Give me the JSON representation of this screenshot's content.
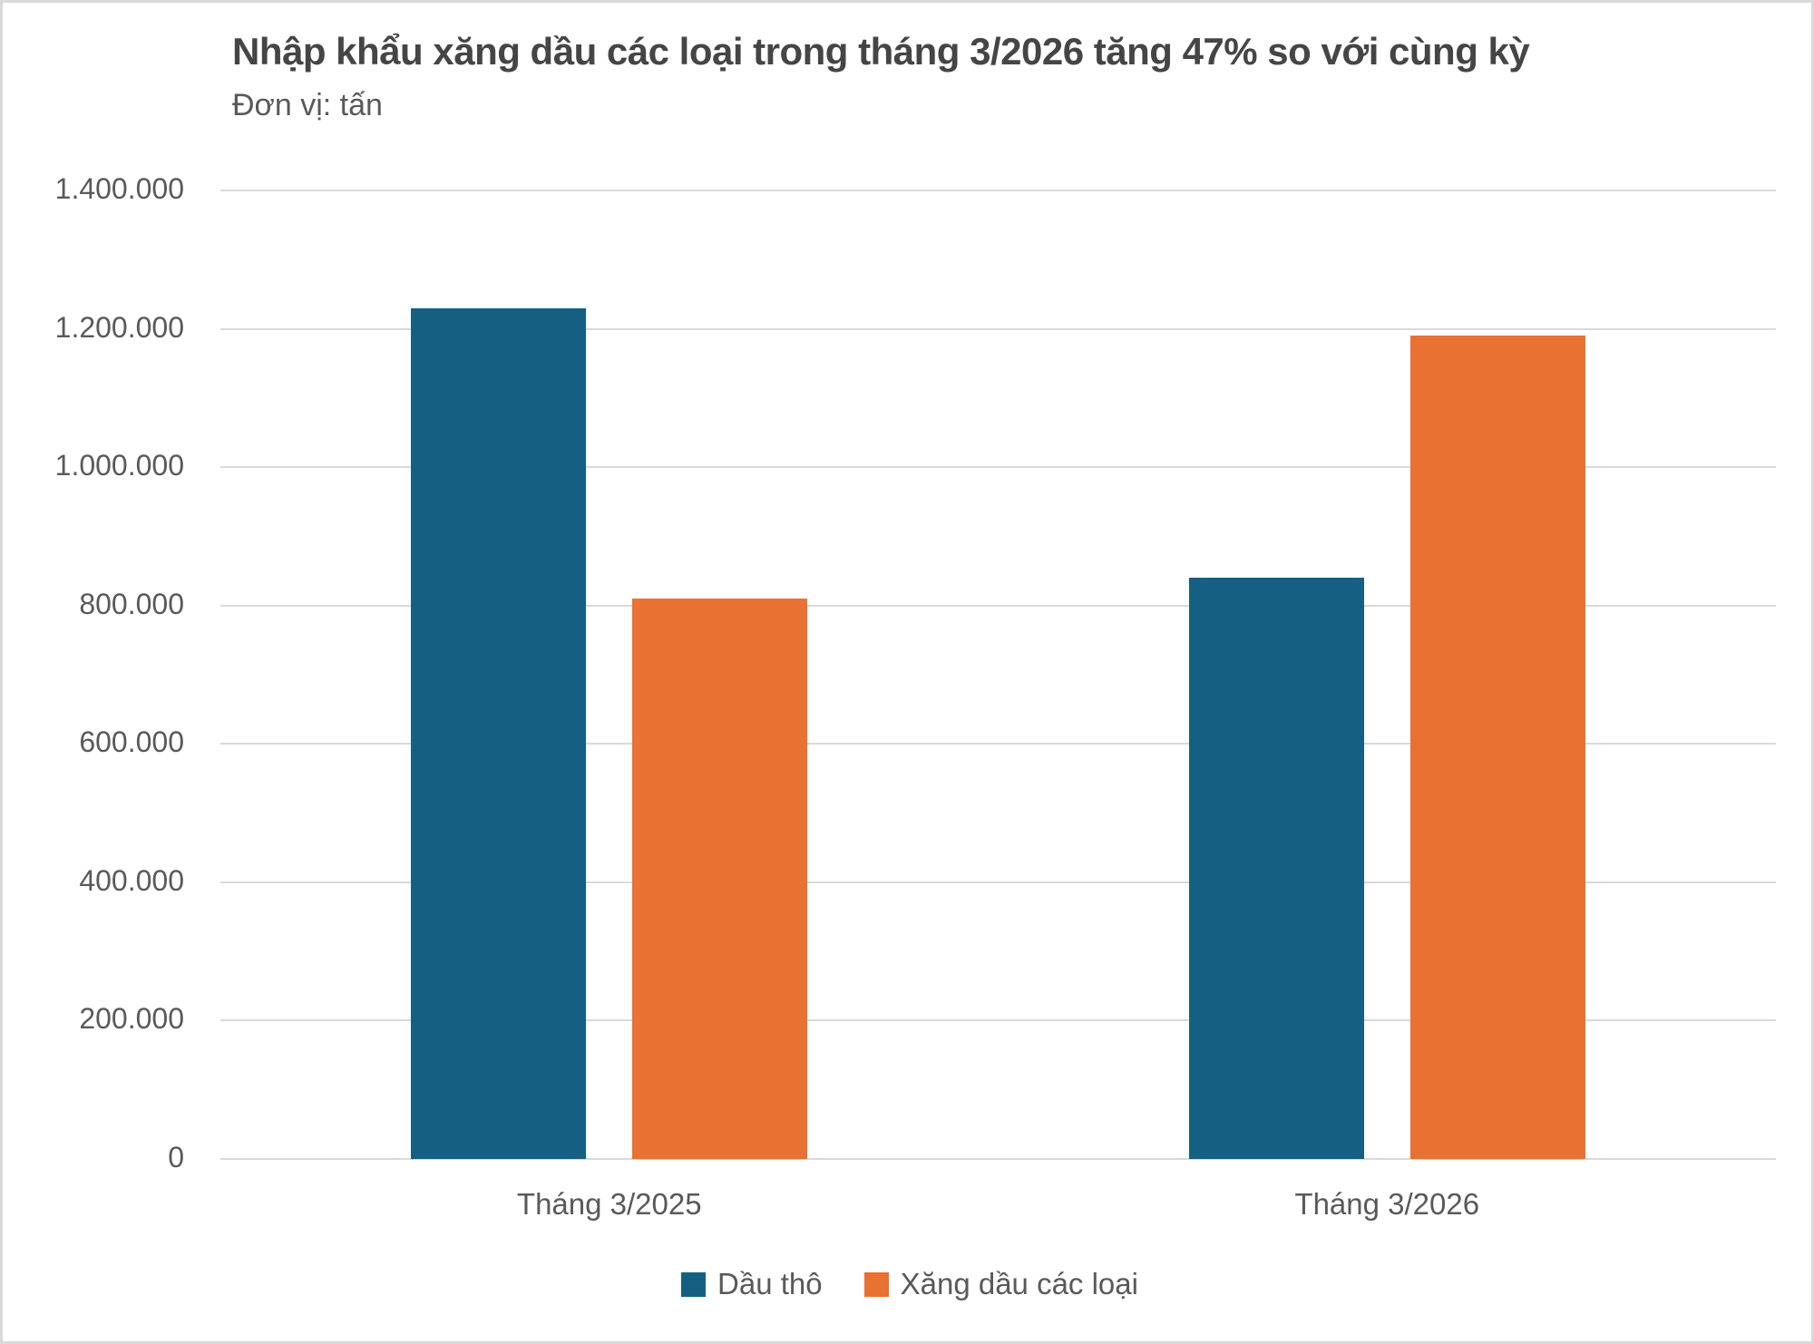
{
  "header": {
    "title": "Nhập khẩu xăng dầu các loại trong tháng 3/2026 tăng 47% so với cùng kỳ",
    "subtitle": "Đơn vị: tấn"
  },
  "colors": {
    "series_dau_tho": "#156082",
    "series_xang_dau": "#E97132",
    "gridline": "#D9D9D9",
    "border": "#D9D9D9",
    "title_text": "#454545",
    "axis_text": "#595959"
  },
  "chart_data": {
    "type": "bar",
    "title": "Nhập khẩu xăng dầu các loại trong tháng 3/2026 tăng 47% so với cùng kỳ",
    "subtitle": "Đơn vị: tấn",
    "categories": [
      "Tháng 3/2025",
      "Tháng 3/2026"
    ],
    "series": [
      {
        "name": "Dầu thô",
        "color": "#156082",
        "values": [
          1230000,
          840000
        ]
      },
      {
        "name": "Xăng dầu các loại",
        "color": "#E97132",
        "values": [
          810000,
          1190000
        ]
      }
    ],
    "xlabel": "",
    "ylabel": "tấn",
    "ylim": [
      0,
      1400000
    ],
    "ytick_step": 200000,
    "yticks": [
      0,
      200000,
      400000,
      600000,
      800000,
      1000000,
      1200000,
      1400000
    ],
    "ytick_labels": [
      "0",
      "200.000",
      "400.000",
      "600.000",
      "800.000",
      "1.000.000",
      "1.200.000",
      "1.400.000"
    ],
    "grid": true,
    "legend_position": "bottom"
  }
}
